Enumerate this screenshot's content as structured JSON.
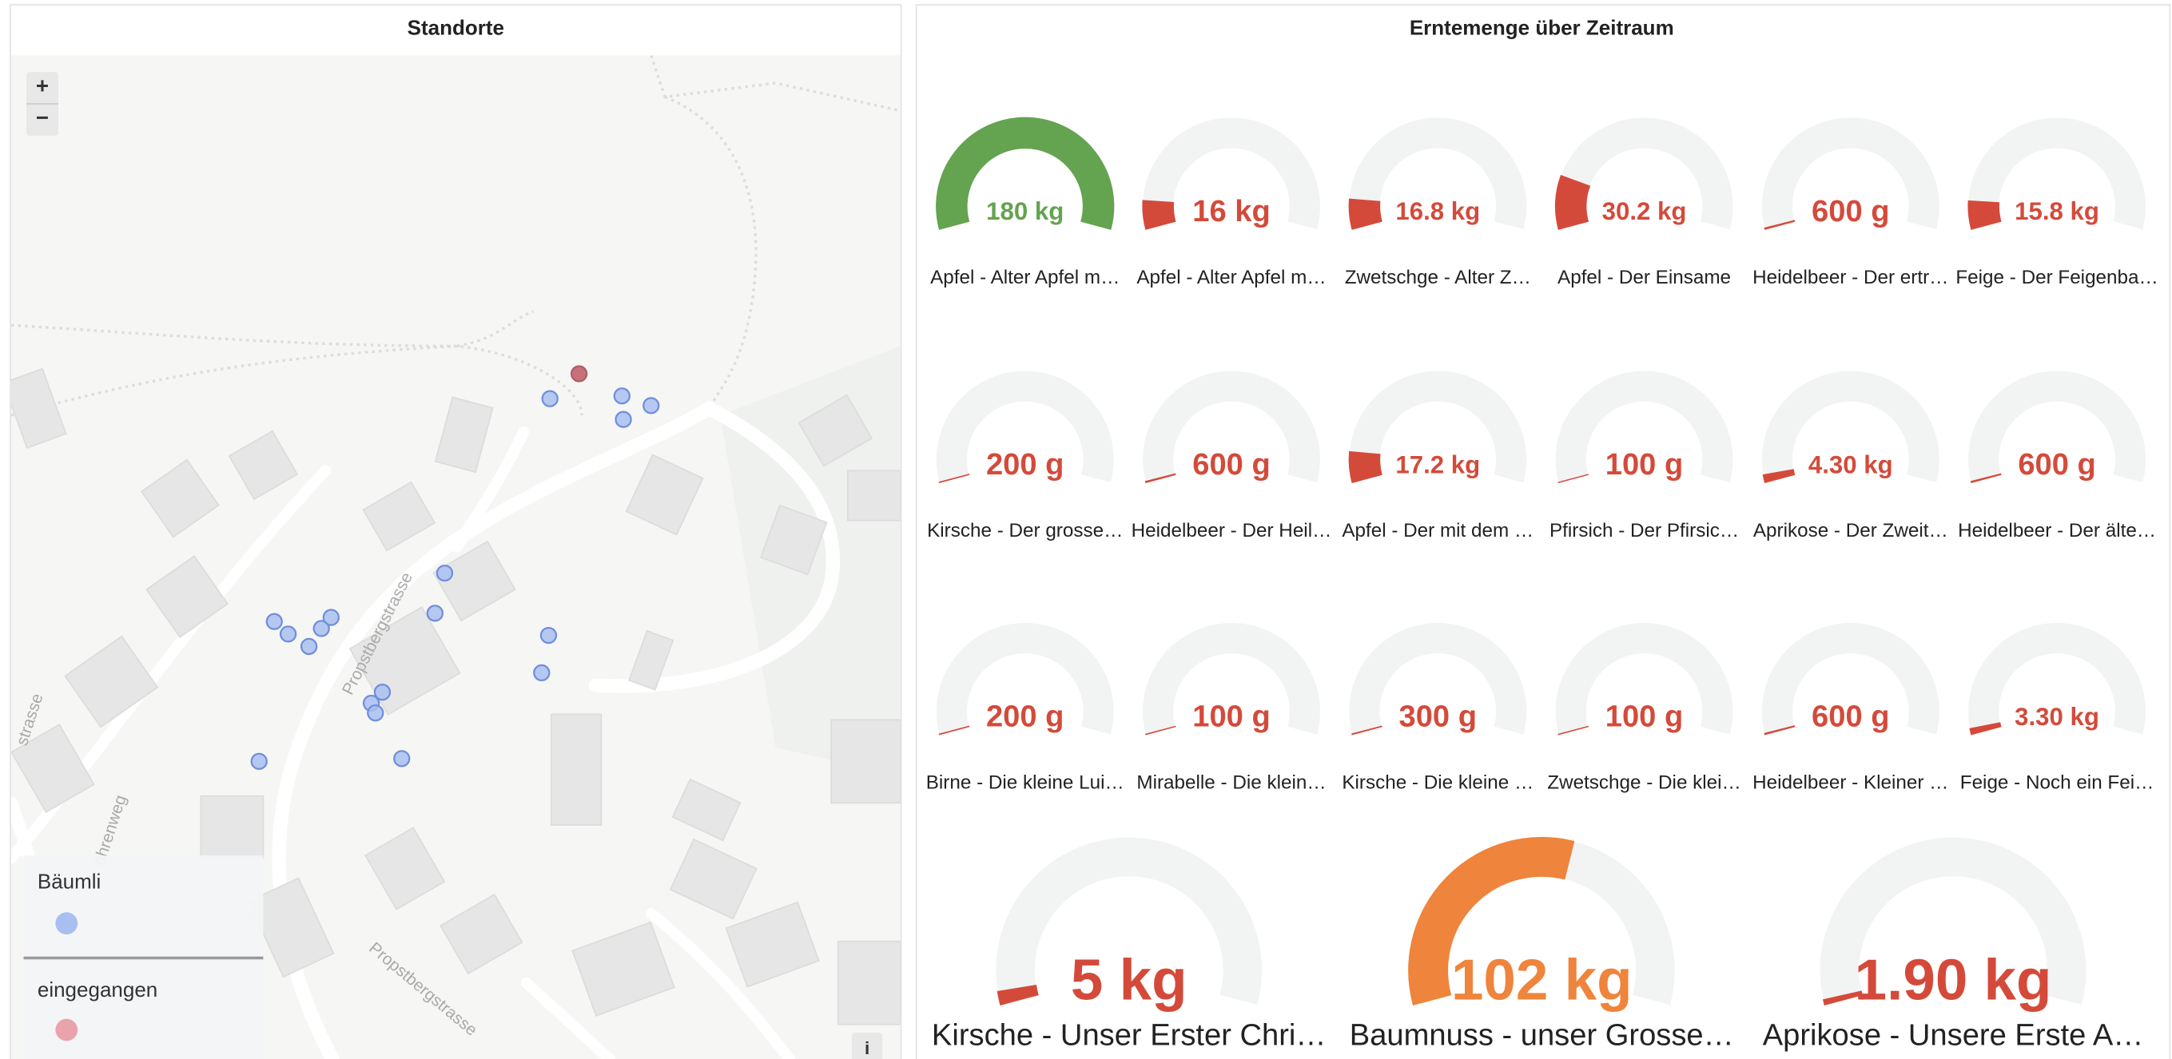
{
  "map_panel": {
    "title": "Standorte",
    "zoom_in": "+",
    "zoom_out": "−",
    "info": "i",
    "streets": [
      "Propstbergstrasse",
      "Propstbergstrasse",
      "öhrenweg",
      "strasse"
    ],
    "legend": [
      {
        "name": "Bäumli",
        "color": "#a9bff0"
      },
      {
        "name": "eingegangen",
        "color": "#eaa3ab"
      }
    ]
  },
  "gauge_panel": {
    "title": "Erntemenge über Zeitraum",
    "min": 0,
    "max": 180,
    "gauges": [
      {
        "label": "Apfel - Alter Apfel m…",
        "value": 180,
        "value_label": "180 kg",
        "color": "#64a350"
      },
      {
        "label": "Apfel - Alter Apfel m…",
        "value": 16,
        "value_label": "16 kg",
        "color": "#d44a3a"
      },
      {
        "label": "Zwetschge - Alter Z…",
        "value": 16.8,
        "value_label": "16.8 kg",
        "color": "#d44a3a"
      },
      {
        "label": "Apfel - Der Einsame",
        "value": 30.2,
        "value_label": "30.2 kg",
        "color": "#d44a3a"
      },
      {
        "label": "Heidelbeer - Der ertr…",
        "value": 0.6,
        "value_label": "600 g",
        "color": "#d44a3a"
      },
      {
        "label": "Feige - Der Feigenba…",
        "value": 15.8,
        "value_label": "15.8 kg",
        "color": "#d44a3a"
      },
      {
        "label": "Kirsche - Der grosse…",
        "value": 0.2,
        "value_label": "200 g",
        "color": "#d44a3a"
      },
      {
        "label": "Heidelbeer - Der Heil…",
        "value": 0.6,
        "value_label": "600 g",
        "color": "#d44a3a"
      },
      {
        "label": "Apfel - Der mit dem …",
        "value": 17.2,
        "value_label": "17.2 kg",
        "color": "#d44a3a"
      },
      {
        "label": "Pfirsich - Der Pfirsic…",
        "value": 0.1,
        "value_label": "100 g",
        "color": "#d44a3a"
      },
      {
        "label": "Aprikose - Der Zweit…",
        "value": 4.3,
        "value_label": "4.30 kg",
        "color": "#d44a3a"
      },
      {
        "label": "Heidelbeer - Der älte…",
        "value": 0.6,
        "value_label": "600 g",
        "color": "#d44a3a"
      },
      {
        "label": "Birne - Die kleine Lui…",
        "value": 0.2,
        "value_label": "200 g",
        "color": "#d44a3a"
      },
      {
        "label": "Mirabelle - Die klein…",
        "value": 0.1,
        "value_label": "100 g",
        "color": "#d44a3a"
      },
      {
        "label": "Kirsche - Die kleine …",
        "value": 0.3,
        "value_label": "300 g",
        "color": "#d44a3a"
      },
      {
        "label": "Zwetschge - Die klei…",
        "value": 0.1,
        "value_label": "100 g",
        "color": "#d44a3a"
      },
      {
        "label": "Heidelbeer - Kleiner …",
        "value": 0.6,
        "value_label": "600 g",
        "color": "#d44a3a"
      },
      {
        "label": "Feige - Noch ein Fei…",
        "value": 3.3,
        "value_label": "3.30 kg",
        "color": "#d44a3a"
      },
      {
        "label": "Kirsche - Unser Erster Chri…",
        "value": 5,
        "value_label": "5 kg",
        "color": "#d44a3a"
      },
      {
        "label": "Baumnuss - unser Grosse…",
        "value": 102,
        "value_label": "102 kg",
        "color": "#ef843c"
      },
      {
        "label": "Aprikose - Unsere Erste A…",
        "value": 1.9,
        "value_label": "1.90 kg",
        "color": "#d44a3a"
      }
    ]
  }
}
